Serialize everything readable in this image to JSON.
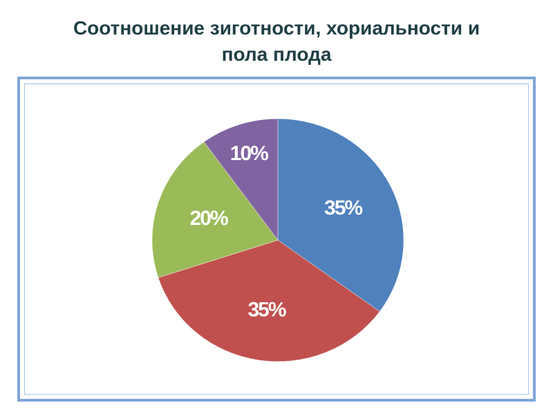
{
  "slide": {
    "title_line1": "Соотношение зиготности, хориальности и",
    "title_line2": "пола плода"
  },
  "chart_data": {
    "type": "pie",
    "title": "",
    "slices": [
      {
        "value": 35,
        "label": "35%",
        "color": "#4f81bd"
      },
      {
        "value": 35,
        "label": "35%",
        "color": "#c0504d"
      },
      {
        "value": 20,
        "label": "20%",
        "color": "#9bbb59"
      },
      {
        "value": 10,
        "label": "10%",
        "color": "#8064a2"
      }
    ],
    "start_angle_deg": 0,
    "direction": "clockwise",
    "legend": "none",
    "frame_color": "#7fa6d8"
  }
}
